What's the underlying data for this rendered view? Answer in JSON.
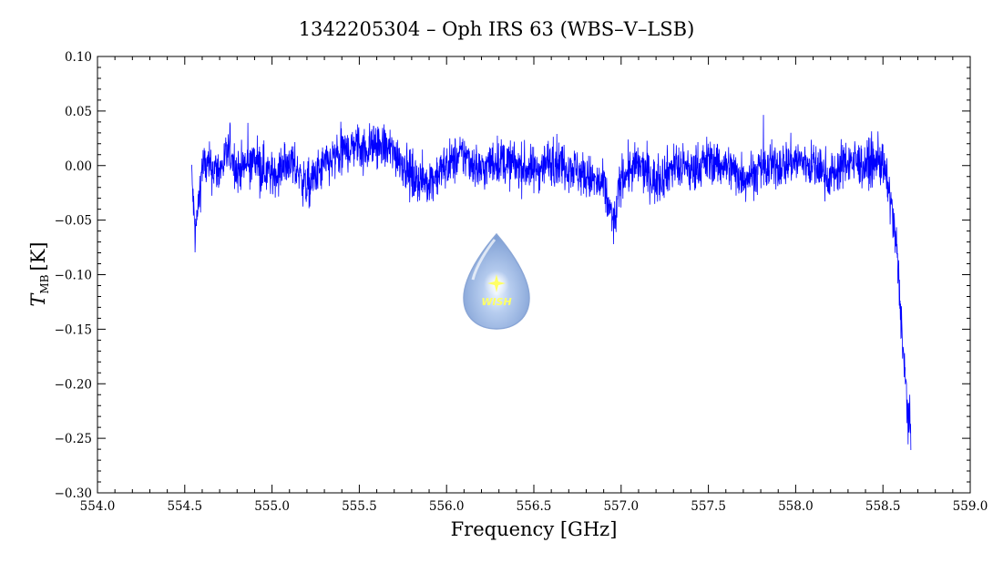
{
  "chart_data": {
    "type": "line",
    "title": "1342205304 – Oph IRS 63 (WBS–V–LSB)",
    "xlabel": "Frequency [GHz]",
    "ylabel": "T",
    "ylabel_subscript": "MB",
    "ylabel_unit": "[K]",
    "xlim": [
      554.0,
      559.0
    ],
    "ylim": [
      -0.3,
      0.1
    ],
    "x_ticks": [
      "554.0",
      "554.5",
      "555.0",
      "555.5",
      "556.0",
      "556.5",
      "557.0",
      "557.5",
      "558.0",
      "558.5",
      "559.0"
    ],
    "y_ticks": [
      "0.10",
      "0.05",
      "0.00",
      "-0.05",
      "-0.10",
      "-0.15",
      "-0.20",
      "-0.25",
      "-0.30"
    ],
    "grid": false,
    "line_color": "#0000ff",
    "series": [
      {
        "x": [
          554.54,
          554.56,
          554.6,
          554.7,
          554.76,
          554.8,
          554.9,
          555.0,
          555.1,
          555.2,
          555.3,
          555.4,
          555.48,
          555.52,
          555.6,
          555.72,
          555.8,
          555.9,
          556.0,
          556.1,
          556.2,
          556.28,
          556.4,
          556.5,
          556.6,
          556.7,
          556.8,
          556.9,
          556.96,
          557.0,
          557.1,
          557.2,
          557.3,
          557.4,
          557.5,
          557.6,
          557.7,
          557.8,
          557.9,
          558.0,
          558.1,
          558.2,
          558.3,
          558.4,
          558.48,
          558.52,
          558.55,
          558.58,
          558.6,
          558.62,
          558.64,
          558.66
        ],
        "y": [
          -0.01,
          -0.065,
          0.0,
          -0.005,
          0.015,
          -0.005,
          0.005,
          -0.01,
          0.005,
          -0.02,
          0.0,
          0.01,
          0.02,
          0.015,
          0.02,
          0.01,
          -0.01,
          -0.015,
          0.0,
          0.01,
          -0.005,
          0.005,
          0.0,
          -0.005,
          0.005,
          0.0,
          -0.01,
          -0.02,
          -0.055,
          -0.01,
          0.0,
          -0.015,
          0.0,
          -0.005,
          0.005,
          0.0,
          -0.01,
          -0.005,
          0.0,
          0.005,
          0.0,
          -0.01,
          0.005,
          0.0,
          0.005,
          -0.01,
          -0.04,
          -0.08,
          -0.13,
          -0.18,
          -0.22,
          -0.25
        ],
        "noise_sigma": 0.015
      }
    ]
  },
  "watermark": {
    "text": "WISH",
    "icon": "water-drop-star-icon"
  }
}
